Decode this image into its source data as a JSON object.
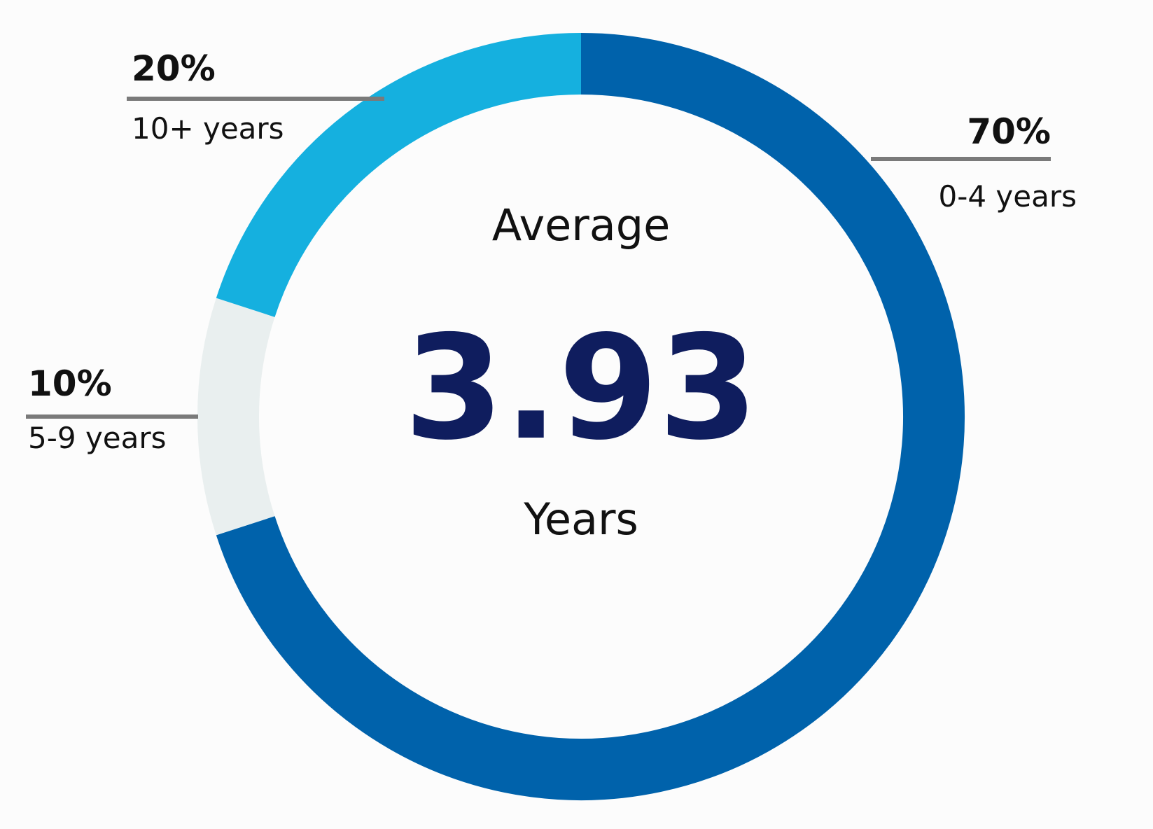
{
  "chart_data": {
    "type": "pie",
    "categories": [
      "0-4 years",
      "5-9 years",
      "10+ years"
    ],
    "values": [
      70,
      10,
      20
    ],
    "value_labels": [
      "70%",
      "10%",
      "20%"
    ],
    "colors": [
      "#0062ab",
      "#e9efef",
      "#15b0df"
    ],
    "center": {
      "top_label": "Average",
      "value": "3.93",
      "bottom_label": "Years"
    },
    "leader_color": "#7a7a7a"
  }
}
